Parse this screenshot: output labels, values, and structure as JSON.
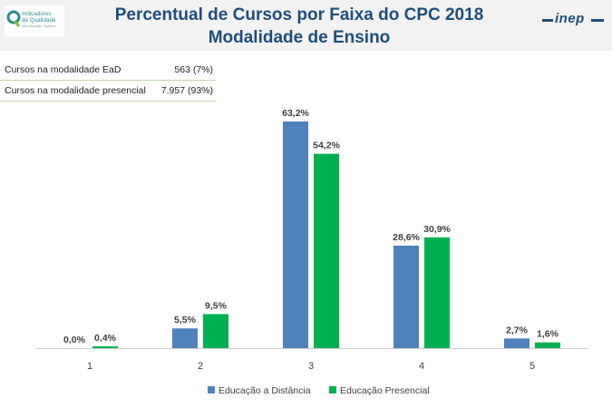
{
  "header": {
    "title_line1": "Percentual de Cursos por Faixa do CPC 2018",
    "title_line2": "Modalidade de Ensino",
    "left_logo": {
      "line1": "Indicadores",
      "line2": "de Qualidade",
      "line3": "da Educação Superior"
    },
    "right_logo_text": "inep"
  },
  "stats": [
    {
      "label": "Cursos na modalidade EaD",
      "value": "563 (7%)"
    },
    {
      "label": "Cursos na modalidade presencial",
      "value": "7.957 (93%)"
    }
  ],
  "colors": {
    "series_ead": "#4f81bd",
    "series_presencial": "#00b050",
    "title": "#1f4e79"
  },
  "chart_data": {
    "type": "bar",
    "title": "Percentual de Cursos por Faixa do CPC 2018 Modalidade de Ensino",
    "categories": [
      "1",
      "2",
      "3",
      "4",
      "5"
    ],
    "series": [
      {
        "name": "Educação a Distância",
        "values": [
          0.0,
          5.5,
          63.2,
          28.6,
          2.7
        ],
        "labels": [
          "0,0%",
          "5,5%",
          "63,2%",
          "28,6%",
          "2,7%"
        ]
      },
      {
        "name": "Educação Presencial",
        "values": [
          0.4,
          9.5,
          54.2,
          30.9,
          1.6
        ],
        "labels": [
          "0,4%",
          "9,5%",
          "54,2%",
          "30,9%",
          "1,6%"
        ]
      }
    ],
    "xlabel": "",
    "ylabel": "",
    "ylim": [
      0,
      63.2
    ],
    "grid": false,
    "legend": "bottom"
  }
}
